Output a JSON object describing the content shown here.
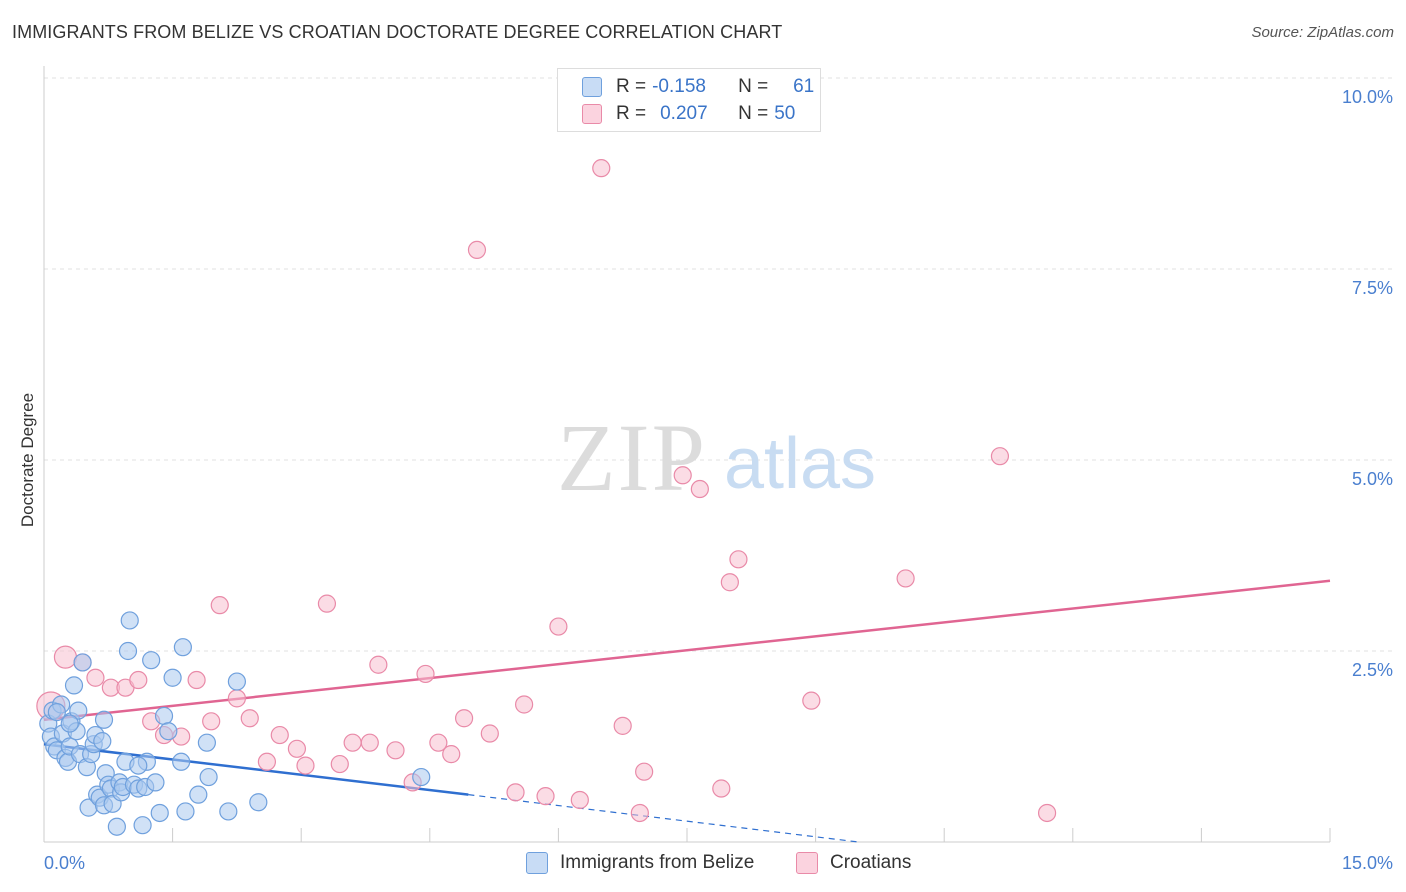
{
  "title": "IMMIGRANTS FROM BELIZE VS CROATIAN DOCTORATE DEGREE CORRELATION CHART",
  "source": "Source: ZipAtlas.com",
  "watermark": {
    "zip": "ZIP",
    "atlas": "atlas"
  },
  "legend": {
    "r_label": "R =",
    "n_label": "N =",
    "series": [
      {
        "r": "-0.158",
        "n": "61",
        "color": "#a9c8ee",
        "border": "#6fa0dd"
      },
      {
        "r": "0.207",
        "n": "50",
        "color": "#f7bfd0",
        "border": "#e98aa8"
      }
    ]
  },
  "bottom_legend": [
    {
      "label": "Immigrants from Belize",
      "color": "#c8dcf5",
      "border": "#6fa0dd"
    },
    {
      "label": "Croatians",
      "color": "#fbd3df",
      "border": "#e98aa8"
    }
  ],
  "chart_data": {
    "type": "scatter",
    "title": "IMMIGRANTS FROM BELIZE VS CROATIAN DOCTORATE DEGREE CORRELATION CHART",
    "xlabel": "",
    "ylabel": "Doctorate Degree",
    "xlim": [
      0,
      15
    ],
    "ylim": [
      0,
      10
    ],
    "x_tick_labels": [
      {
        "value": 0,
        "label": "0.0%"
      },
      {
        "value": 15,
        "label": "15.0%"
      }
    ],
    "y_tick_labels": [
      {
        "value": 2.5,
        "label": "2.5%"
      },
      {
        "value": 5.0,
        "label": "5.0%"
      },
      {
        "value": 7.5,
        "label": "7.5%"
      },
      {
        "value": 10.0,
        "label": "10.0%"
      }
    ],
    "series": [
      {
        "name": "Immigrants from Belize",
        "color": "#6fa0dd",
        "fill": "#a9c8ee",
        "trend": {
          "x0": 0.0,
          "y0": 1.28,
          "x1": 4.95,
          "y1": 0.62,
          "dash_x1": 9.5,
          "dash_y1": 0.0,
          "color": "#2f6fd0"
        },
        "points": [
          [
            0.05,
            1.55
          ],
          [
            0.08,
            1.38
          ],
          [
            0.1,
            1.72
          ],
          [
            0.12,
            1.25
          ],
          [
            0.15,
            1.2
          ],
          [
            0.2,
            1.8
          ],
          [
            0.22,
            1.42
          ],
          [
            0.25,
            1.1
          ],
          [
            0.28,
            1.05
          ],
          [
            0.3,
            1.25
          ],
          [
            0.32,
            1.58
          ],
          [
            0.35,
            2.05
          ],
          [
            0.38,
            1.45
          ],
          [
            0.4,
            1.72
          ],
          [
            0.42,
            1.15
          ],
          [
            0.45,
            2.35
          ],
          [
            0.5,
            0.98
          ],
          [
            0.52,
            0.45
          ],
          [
            0.55,
            1.15
          ],
          [
            0.58,
            1.28
          ],
          [
            0.6,
            1.4
          ],
          [
            0.62,
            0.62
          ],
          [
            0.65,
            0.58
          ],
          [
            0.68,
            1.32
          ],
          [
            0.7,
            0.48
          ],
          [
            0.72,
            0.9
          ],
          [
            0.75,
            0.75
          ],
          [
            0.78,
            0.7
          ],
          [
            0.8,
            0.5
          ],
          [
            0.85,
            0.2
          ],
          [
            0.88,
            0.78
          ],
          [
            0.9,
            0.65
          ],
          [
            0.92,
            0.72
          ],
          [
            0.95,
            1.05
          ],
          [
            0.98,
            2.5
          ],
          [
            1.0,
            2.9
          ],
          [
            1.05,
            0.75
          ],
          [
            1.1,
            0.7
          ],
          [
            1.15,
            0.22
          ],
          [
            1.18,
            0.72
          ],
          [
            1.2,
            1.05
          ],
          [
            1.25,
            2.38
          ],
          [
            1.3,
            0.78
          ],
          [
            1.35,
            0.38
          ],
          [
            1.4,
            1.65
          ],
          [
            1.45,
            1.45
          ],
          [
            1.5,
            2.15
          ],
          [
            1.6,
            1.05
          ],
          [
            1.62,
            2.55
          ],
          [
            1.65,
            0.4
          ],
          [
            1.8,
            0.62
          ],
          [
            1.9,
            1.3
          ],
          [
            1.92,
            0.85
          ],
          [
            2.15,
            0.4
          ],
          [
            2.25,
            2.1
          ],
          [
            2.5,
            0.52
          ],
          [
            4.4,
            0.85
          ],
          [
            0.15,
            1.7
          ],
          [
            0.3,
            1.55
          ],
          [
            0.7,
            1.6
          ],
          [
            1.1,
            1.0
          ]
        ]
      },
      {
        "name": "Croatians",
        "color": "#e98aa8",
        "fill": "#f7bfd0",
        "trend": {
          "x0": 0.0,
          "y0": 1.6,
          "x1": 15.0,
          "y1": 3.42,
          "color": "#e06592"
        },
        "points": [
          [
            0.08,
            1.78
          ],
          [
            0.25,
            2.42
          ],
          [
            0.45,
            2.35
          ],
          [
            0.6,
            2.15
          ],
          [
            0.78,
            2.02
          ],
          [
            0.95,
            2.02
          ],
          [
            1.1,
            2.12
          ],
          [
            1.25,
            1.58
          ],
          [
            1.4,
            1.4
          ],
          [
            1.6,
            1.38
          ],
          [
            1.78,
            2.12
          ],
          [
            1.95,
            1.58
          ],
          [
            2.05,
            3.1
          ],
          [
            2.25,
            1.88
          ],
          [
            2.4,
            1.62
          ],
          [
            2.6,
            1.05
          ],
          [
            2.75,
            1.4
          ],
          [
            2.95,
            1.22
          ],
          [
            3.05,
            1.0
          ],
          [
            3.3,
            3.12
          ],
          [
            3.45,
            1.02
          ],
          [
            3.6,
            1.3
          ],
          [
            3.8,
            1.3
          ],
          [
            3.9,
            2.32
          ],
          [
            4.1,
            1.2
          ],
          [
            4.3,
            0.78
          ],
          [
            4.45,
            2.2
          ],
          [
            4.6,
            1.3
          ],
          [
            4.75,
            1.15
          ],
          [
            4.9,
            1.62
          ],
          [
            5.05,
            7.75
          ],
          [
            5.2,
            1.42
          ],
          [
            5.5,
            0.65
          ],
          [
            5.6,
            1.8
          ],
          [
            5.85,
            0.6
          ],
          [
            6.0,
            2.82
          ],
          [
            6.25,
            0.55
          ],
          [
            6.5,
            8.82
          ],
          [
            6.75,
            1.52
          ],
          [
            6.95,
            0.38
          ],
          [
            7.0,
            0.92
          ],
          [
            7.45,
            4.8
          ],
          [
            7.65,
            4.62
          ],
          [
            7.9,
            0.7
          ],
          [
            8.0,
            3.4
          ],
          [
            8.1,
            3.7
          ],
          [
            8.95,
            1.85
          ],
          [
            10.05,
            3.45
          ],
          [
            11.15,
            5.05
          ],
          [
            11.7,
            0.38
          ]
        ]
      }
    ]
  }
}
